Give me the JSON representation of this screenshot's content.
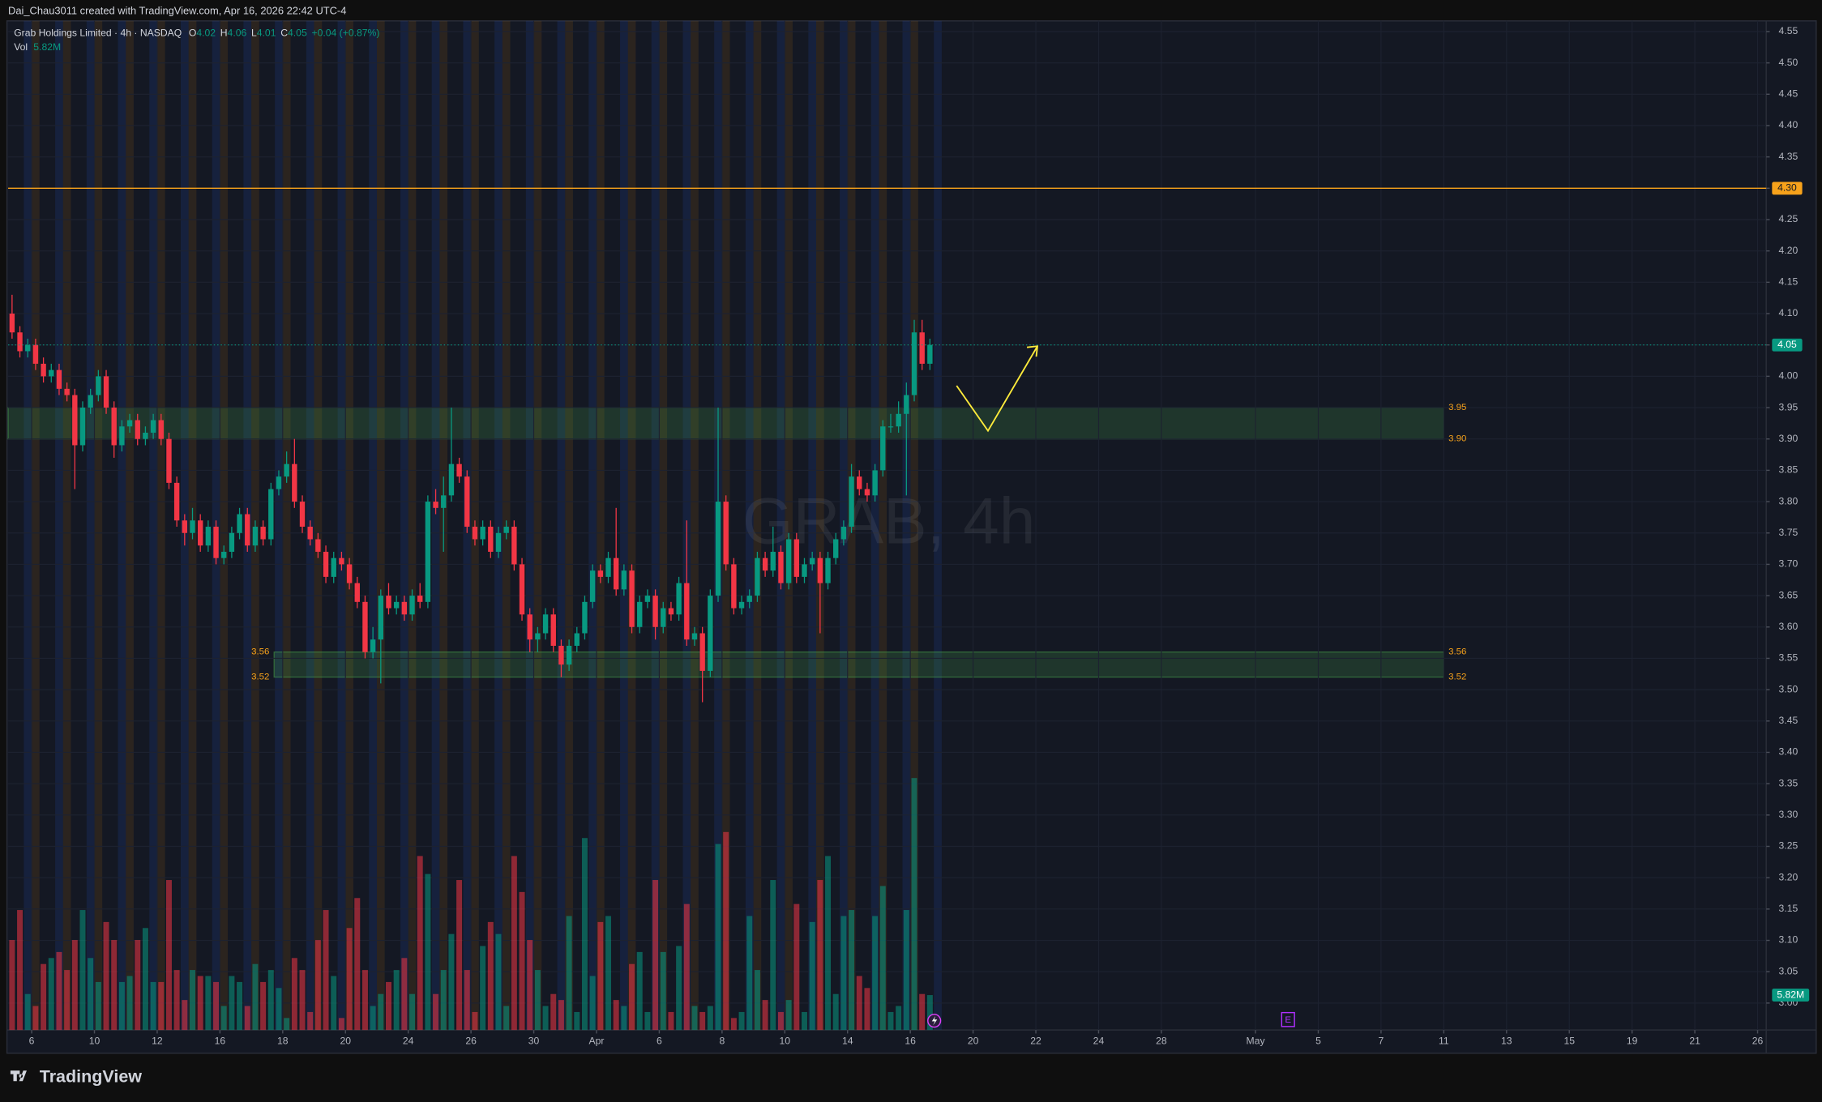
{
  "chart_data": {
    "type": "candlestick",
    "credit": "Dai_Chau3011 created with TradingView.com, Apr 16, 2026 22:42 UTC-4",
    "symbol": "Grab Holdings Limited · 4h · NASDAQ",
    "ohlc_labels": [
      "O",
      "H",
      "L",
      "C"
    ],
    "change": "+0.04 (+0.87%)",
    "watermark": "GRAB, 4h",
    "brand": "TradingView",
    "earnings_marker": "E",
    "up_color": "#089981",
    "down_color": "#f23645",
    "xlim": [
      -0.5,
      223.6
    ],
    "ylim": [
      2.957,
      4.567
    ],
    "grid": true,
    "xticks": [
      {
        "value": 2.5,
        "label": "6"
      },
      {
        "value": 10.5,
        "label": "10"
      },
      {
        "value": 18.5,
        "label": "12"
      },
      {
        "value": 26.5,
        "label": "16"
      },
      {
        "value": 34.5,
        "label": "18"
      },
      {
        "value": 42.5,
        "label": "20"
      },
      {
        "value": 50.5,
        "label": "24"
      },
      {
        "value": 58.5,
        "label": "26"
      },
      {
        "value": 66.5,
        "label": "30"
      },
      {
        "value": 74.5,
        "label": "Apr"
      },
      {
        "value": 82.5,
        "label": "6"
      },
      {
        "value": 90.5,
        "label": "8"
      },
      {
        "value": 98.5,
        "label": "10"
      },
      {
        "value": 106.5,
        "label": "14"
      },
      {
        "value": 114.5,
        "label": "16"
      },
      {
        "value": 122.5,
        "label": "20"
      },
      {
        "value": 130.5,
        "label": "22"
      },
      {
        "value": 138.5,
        "label": "24"
      },
      {
        "value": 146.5,
        "label": "28"
      },
      {
        "value": 158.5,
        "label": "May"
      },
      {
        "value": 166.5,
        "label": "5"
      },
      {
        "value": 174.5,
        "label": "7"
      },
      {
        "value": 182.5,
        "label": "11"
      },
      {
        "value": 190.5,
        "label": "13"
      },
      {
        "value": 198.5,
        "label": "15"
      },
      {
        "value": 206.5,
        "label": "19"
      },
      {
        "value": 214.5,
        "label": "21"
      },
      {
        "value": 222.5,
        "label": "26"
      }
    ],
    "yticks": [
      4.55,
      {
        "value": 4.5,
        "label": "4.50"
      },
      4.45,
      {
        "value": 4.4,
        "label": "4.40"
      },
      4.35,
      {
        "value": 4.3,
        "label": "4.30"
      },
      4.25,
      {
        "value": 4.2,
        "label": "4.20"
      },
      4.15,
      {
        "value": 4.1,
        "label": "4.10"
      },
      4.05,
      {
        "value": 4.0,
        "label": "4.00"
      },
      3.95,
      {
        "value": 3.9,
        "label": "3.90"
      },
      3.85,
      {
        "value": 3.8,
        "label": "3.80"
      },
      3.75,
      {
        "value": 3.7,
        "label": "3.70"
      },
      3.65,
      {
        "value": 3.6,
        "label": "3.60"
      },
      3.55,
      {
        "value": 3.5,
        "label": "3.50"
      },
      3.45,
      {
        "value": 3.4,
        "label": "3.40"
      },
      3.35,
      {
        "value": 3.3,
        "label": "3.30"
      },
      3.25,
      {
        "value": 3.2,
        "label": "3.20"
      },
      3.15,
      {
        "value": 3.1,
        "label": "3.10"
      },
      3.05,
      {
        "value": 3.0,
        "label": "3.00"
      }
    ],
    "levels": [
      {
        "value": 4.3,
        "label": "4.30",
        "color": "#f7a21b"
      }
    ],
    "zones": [
      {
        "x": [
          -0.5,
          182.5
        ],
        "high": {
          "value": 3.95,
          "label": "3.95"
        },
        "low": {
          "value": 3.9,
          "label": "3.90"
        }
      },
      {
        "x": [
          33.4,
          182.5
        ],
        "high": {
          "value": 3.56,
          "label": "3.56"
        },
        "low": {
          "value": 3.52,
          "label": "3.52"
        }
      }
    ],
    "arrow": {
      "x": [
        120.4,
        124.4,
        130.7
      ],
      "y": [
        3.985,
        3.913,
        4.048
      ],
      "color": "#ffeb3b"
    },
    "ohlc": [
      [
        4.1,
        4.13,
        4.06,
        4.07
      ],
      [
        4.07,
        4.08,
        4.03,
        4.04
      ],
      [
        4.04,
        4.06,
        4.03,
        4.05
      ],
      [
        4.05,
        4.06,
        4.01,
        4.02
      ],
      [
        4.02,
        4.03,
        3.99,
        4.0
      ],
      [
        4.0,
        4.02,
        3.99,
        4.01
      ],
      [
        4.01,
        4.02,
        3.97,
        3.98
      ],
      [
        3.98,
        3.99,
        3.96,
        3.97
      ],
      [
        3.97,
        3.98,
        3.82,
        3.89
      ],
      [
        3.89,
        3.96,
        3.88,
        3.95
      ],
      [
        3.95,
        3.98,
        3.94,
        3.97
      ],
      [
        3.97,
        4.01,
        3.96,
        4.0
      ],
      [
        4.0,
        4.01,
        3.94,
        3.95
      ],
      [
        3.95,
        3.96,
        3.87,
        3.89
      ],
      [
        3.89,
        3.93,
        3.88,
        3.92
      ],
      [
        3.92,
        3.94,
        3.91,
        3.93
      ],
      [
        3.93,
        3.94,
        3.89,
        3.9
      ],
      [
        3.9,
        3.92,
        3.89,
        3.91
      ],
      [
        3.91,
        3.94,
        3.9,
        3.93
      ],
      [
        3.93,
        3.94,
        3.89,
        3.9
      ],
      [
        3.9,
        3.91,
        3.82,
        3.83
      ],
      [
        3.83,
        3.84,
        3.76,
        3.77
      ],
      [
        3.77,
        3.78,
        3.73,
        3.75
      ],
      [
        3.75,
        3.79,
        3.74,
        3.77
      ],
      [
        3.77,
        3.78,
        3.72,
        3.73
      ],
      [
        3.73,
        3.77,
        3.72,
        3.76
      ],
      [
        3.76,
        3.77,
        3.7,
        3.71
      ],
      [
        3.71,
        3.73,
        3.7,
        3.72
      ],
      [
        3.72,
        3.76,
        3.71,
        3.75
      ],
      [
        3.75,
        3.79,
        3.74,
        3.78
      ],
      [
        3.78,
        3.79,
        3.72,
        3.73
      ],
      [
        3.73,
        3.77,
        3.72,
        3.76
      ],
      [
        3.76,
        3.77,
        3.73,
        3.74
      ],
      [
        3.74,
        3.83,
        3.73,
        3.82
      ],
      [
        3.82,
        3.85,
        3.81,
        3.84
      ],
      [
        3.84,
        3.88,
        3.83,
        3.86
      ],
      [
        3.86,
        3.9,
        3.79,
        3.8
      ],
      [
        3.8,
        3.81,
        3.75,
        3.76
      ],
      [
        3.76,
        3.77,
        3.73,
        3.74
      ],
      [
        3.74,
        3.75,
        3.71,
        3.72
      ],
      [
        3.72,
        3.73,
        3.67,
        3.68
      ],
      [
        3.68,
        3.72,
        3.67,
        3.71
      ],
      [
        3.71,
        3.72,
        3.69,
        3.7
      ],
      [
        3.7,
        3.71,
        3.66,
        3.67
      ],
      [
        3.67,
        3.68,
        3.63,
        3.64
      ],
      [
        3.64,
        3.65,
        3.55,
        3.56
      ],
      [
        3.56,
        3.6,
        3.55,
        3.58
      ],
      [
        3.58,
        3.66,
        3.51,
        3.65
      ],
      [
        3.65,
        3.67,
        3.62,
        3.63
      ],
      [
        3.63,
        3.65,
        3.62,
        3.64
      ],
      [
        3.64,
        3.65,
        3.61,
        3.62
      ],
      [
        3.62,
        3.66,
        3.61,
        3.65
      ],
      [
        3.65,
        3.67,
        3.63,
        3.64
      ],
      [
        3.64,
        3.81,
        3.63,
        3.8
      ],
      [
        3.8,
        3.82,
        3.78,
        3.79
      ],
      [
        3.79,
        3.84,
        3.72,
        3.81
      ],
      [
        3.81,
        3.95,
        3.8,
        3.86
      ],
      [
        3.86,
        3.87,
        3.83,
        3.84
      ],
      [
        3.84,
        3.85,
        3.75,
        3.76
      ],
      [
        3.76,
        3.77,
        3.73,
        3.74
      ],
      [
        3.74,
        3.77,
        3.73,
        3.76
      ],
      [
        3.76,
        3.77,
        3.71,
        3.72
      ],
      [
        3.72,
        3.76,
        3.71,
        3.75
      ],
      [
        3.75,
        3.77,
        3.74,
        3.76
      ],
      [
        3.76,
        3.77,
        3.69,
        3.7
      ],
      [
        3.7,
        3.71,
        3.61,
        3.62
      ],
      [
        3.62,
        3.63,
        3.56,
        3.58
      ],
      [
        3.58,
        3.6,
        3.56,
        3.59
      ],
      [
        3.59,
        3.63,
        3.58,
        3.62
      ],
      [
        3.62,
        3.63,
        3.56,
        3.57
      ],
      [
        3.57,
        3.58,
        3.52,
        3.54
      ],
      [
        3.54,
        3.58,
        3.53,
        3.57
      ],
      [
        3.57,
        3.6,
        3.56,
        3.59
      ],
      [
        3.59,
        3.65,
        3.58,
        3.64
      ],
      [
        3.64,
        3.7,
        3.63,
        3.69
      ],
      [
        3.69,
        3.7,
        3.67,
        3.68
      ],
      [
        3.68,
        3.72,
        3.67,
        3.71
      ],
      [
        3.71,
        3.79,
        3.65,
        3.66
      ],
      [
        3.66,
        3.7,
        3.65,
        3.69
      ],
      [
        3.69,
        3.7,
        3.59,
        3.6
      ],
      [
        3.6,
        3.65,
        3.59,
        3.64
      ],
      [
        3.64,
        3.66,
        3.63,
        3.65
      ],
      [
        3.65,
        3.66,
        3.58,
        3.6
      ],
      [
        3.6,
        3.64,
        3.59,
        3.63
      ],
      [
        3.63,
        3.64,
        3.61,
        3.62
      ],
      [
        3.62,
        3.68,
        3.61,
        3.67
      ],
      [
        3.67,
        3.77,
        3.57,
        3.58
      ],
      [
        3.58,
        3.6,
        3.57,
        3.59
      ],
      [
        3.59,
        3.6,
        3.48,
        3.53
      ],
      [
        3.53,
        3.66,
        3.52,
        3.65
      ],
      [
        3.65,
        3.95,
        3.64,
        3.8
      ],
      [
        3.8,
        3.81,
        3.69,
        3.7
      ],
      [
        3.7,
        3.71,
        3.62,
        3.63
      ],
      [
        3.63,
        3.65,
        3.62,
        3.64
      ],
      [
        3.64,
        3.66,
        3.63,
        3.65
      ],
      [
        3.65,
        3.72,
        3.64,
        3.71
      ],
      [
        3.71,
        3.72,
        3.68,
        3.69
      ],
      [
        3.69,
        3.76,
        3.68,
        3.72
      ],
      [
        3.72,
        3.73,
        3.66,
        3.67
      ],
      [
        3.67,
        3.75,
        3.66,
        3.74
      ],
      [
        3.74,
        3.75,
        3.67,
        3.68
      ],
      [
        3.68,
        3.71,
        3.67,
        3.7
      ],
      [
        3.7,
        3.72,
        3.69,
        3.71
      ],
      [
        3.71,
        3.72,
        3.59,
        3.67
      ],
      [
        3.67,
        3.72,
        3.66,
        3.71
      ],
      [
        3.71,
        3.75,
        3.7,
        3.74
      ],
      [
        3.74,
        3.77,
        3.73,
        3.76
      ],
      [
        3.76,
        3.86,
        3.75,
        3.84
      ],
      [
        3.84,
        3.85,
        3.81,
        3.82
      ],
      [
        3.82,
        3.83,
        3.8,
        3.81
      ],
      [
        3.81,
        3.86,
        3.8,
        3.85
      ],
      [
        3.85,
        3.93,
        3.84,
        3.92
      ],
      [
        3.92,
        3.94,
        3.91,
        3.92
      ],
      [
        3.92,
        3.96,
        3.91,
        3.94
      ],
      [
        3.94,
        3.99,
        3.81,
        3.97
      ],
      [
        3.97,
        4.09,
        3.96,
        4.07
      ],
      [
        4.07,
        4.09,
        4.01,
        4.02
      ],
      [
        4.02,
        4.06,
        4.01,
        4.05
      ]
    ],
    "volume": {
      "name": "Vol",
      "vlim": [
        0,
        60
      ],
      "last_label": "5.82M",
      "values": [
        15,
        20,
        6,
        4,
        11,
        12,
        13,
        10,
        15,
        20,
        12,
        8,
        18,
        15,
        8,
        9,
        15,
        17,
        8,
        8,
        25,
        10,
        5,
        10,
        9,
        9,
        8,
        4,
        9,
        8,
        4,
        11,
        8,
        10,
        7,
        2,
        12,
        10,
        3,
        15,
        20,
        9,
        2,
        17,
        22,
        10,
        4,
        6,
        8,
        10,
        12,
        6,
        29,
        26,
        6,
        10,
        16,
        25,
        10,
        3,
        14,
        18,
        16,
        4,
        29,
        23,
        15,
        10,
        4,
        6,
        5,
        19,
        3,
        32,
        9,
        18,
        19,
        5,
        4,
        11,
        13,
        3,
        25,
        13,
        3,
        14,
        21,
        4,
        3,
        4,
        31,
        33,
        2,
        3,
        19,
        10,
        5,
        25,
        3,
        5,
        21,
        3,
        18,
        25,
        29,
        6,
        19,
        20,
        9,
        7,
        19,
        24,
        3,
        4,
        20,
        42,
        6,
        5.82
      ]
    }
  }
}
